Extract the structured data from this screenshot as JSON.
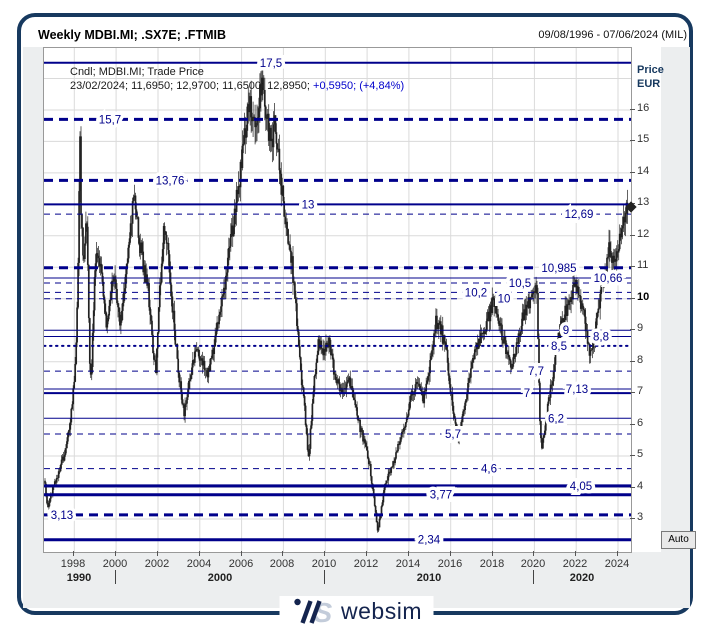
{
  "window": {
    "title": "Weekly MDBI.MI; .SX7E; .FTMIB",
    "date_range": "09/08/1996 - 07/06/2024 (MIL)"
  },
  "legend": {
    "line1": "Cndl; MDBI.MI; Trade Price",
    "line2_black": "23/02/2024; 11,6950; 12,9700; 11,6500; 12,8950; ",
    "line2_blue": "+0,5950; (+4,84%)"
  },
  "axis": {
    "price_title_1": "Price",
    "price_title_2": "EUR",
    "auto_label": "Auto",
    "y_ticks": [
      16,
      15,
      14,
      13,
      12,
      11,
      10,
      9,
      8,
      7,
      6,
      5,
      4,
      3
    ],
    "y_tick_bold": 10,
    "x_ticks": [
      1998,
      2000,
      2002,
      2004,
      2006,
      2008,
      2010,
      2012,
      2014,
      2016,
      2018,
      2020,
      2022,
      2024
    ],
    "decades": [
      {
        "label": "1990",
        "span": [
          1996.55,
          2000
        ]
      },
      {
        "label": "2000",
        "span": [
          2000,
          2010
        ]
      },
      {
        "label": "2010",
        "span": [
          2010,
          2020
        ]
      },
      {
        "label": "2020",
        "span": [
          2020,
          2024.62
        ]
      }
    ],
    "decade_separators": [
      2000,
      2010,
      2020
    ]
  },
  "logo": {
    "text": "websim"
  },
  "colors": {
    "navy_line": "#00008b",
    "frame": "#17395f",
    "grid": "#dadada",
    "candle_body": "#222222",
    "candle_wick": "#3c3c3c",
    "change_text": "#0000cc"
  },
  "chart_data": {
    "type": "candlestick",
    "interval": "weekly",
    "title": "Weekly MDBI.MI; .SX7E; .FTMIB",
    "xlim": [
      1996.55,
      2024.62
    ],
    "ylim": [
      1.95,
      17.97
    ],
    "grid": {
      "y_step": 1,
      "y_range": [
        3,
        17
      ],
      "x_step_years": 2
    },
    "last_quote": {
      "date": "23/02/2024",
      "open": 11.695,
      "high": 12.97,
      "low": 11.65,
      "close": 12.895,
      "change": 0.595,
      "change_pct": 4.84
    },
    "last_price_marker": {
      "shape": "diamond",
      "price": 12.895
    },
    "levels": [
      {
        "value": 17.5,
        "label": "17,5",
        "style": "solid",
        "weight": 2,
        "label_pos": 0.387
      },
      {
        "value": 15.7,
        "label": "15,7",
        "style": "dashed",
        "weight": 3,
        "label_pos": 0.112
      },
      {
        "value": 13.76,
        "label": "13,76",
        "style": "dashed",
        "weight": 3,
        "label_pos": 0.215
      },
      {
        "value": 13.0,
        "label": "13",
        "style": "solid",
        "weight": 2,
        "label_pos": 0.45
      },
      {
        "value": 12.69,
        "label": "12,69",
        "style": "dashed",
        "weight": 1,
        "label_pos": 0.911
      },
      {
        "value": 10.985,
        "label": "10,985",
        "style": "dashed",
        "weight": 3,
        "label_pos": 0.877
      },
      {
        "value": 10.66,
        "label": "10,66",
        "style": "solid",
        "weight": 1,
        "label_pos": 0.96
      },
      {
        "value": 10.5,
        "label": "10,5",
        "style": "dashed",
        "weight": 1,
        "label_pos": 0.811
      },
      {
        "value": 10.2,
        "label": "10,2",
        "style": "dashed",
        "weight": 1,
        "label_pos": 0.736
      },
      {
        "value": 10.0,
        "label": "10",
        "style": "dashed",
        "weight": 1,
        "label_pos": 0.784
      },
      {
        "value": 9.0,
        "label": "9",
        "style": "solid",
        "weight": 1,
        "label_pos": 0.89
      },
      {
        "value": 8.8,
        "label": "8,8",
        "style": "solid",
        "weight": 1,
        "label_pos": 0.949
      },
      {
        "value": 8.5,
        "label": "8,5",
        "style": "dotted",
        "weight": 2,
        "label_pos": 0.877
      },
      {
        "value": 7.7,
        "label": "7,7",
        "style": "dashed",
        "weight": 1,
        "label_pos": 0.838
      },
      {
        "value": 7.13,
        "label": "7,13",
        "style": "solid",
        "weight": 1,
        "label_pos": 0.908
      },
      {
        "value": 7.0,
        "label": "7",
        "style": "solid",
        "weight": 2,
        "label_pos": 0.823
      },
      {
        "value": 6.2,
        "label": "6,2",
        "style": "solid",
        "weight": 1,
        "label_pos": 0.872
      },
      {
        "value": 5.7,
        "label": "5,7",
        "style": "dashed",
        "weight": 1,
        "label_pos": 0.697
      },
      {
        "value": 4.6,
        "label": "4,6",
        "style": "dashed",
        "weight": 1,
        "label_pos": 0.758
      },
      {
        "value": 4.05,
        "label": "4,05",
        "style": "solid",
        "weight": 3,
        "label_pos": 0.915
      },
      {
        "value": 3.77,
        "label": "3,77",
        "style": "solid",
        "weight": 3,
        "label_pos": 0.676
      },
      {
        "value": 3.13,
        "label": "3,13",
        "style": "dashed",
        "weight": 3,
        "label_pos": 0.03
      },
      {
        "value": 2.34,
        "label": "2,34",
        "style": "solid",
        "weight": 3,
        "label_pos": 0.656
      }
    ],
    "price_path_anchors": [
      [
        1996.6,
        4.2
      ],
      [
        1996.72,
        3.35
      ],
      [
        1996.9,
        3.8
      ],
      [
        1997.2,
        4.4
      ],
      [
        1997.5,
        5.0
      ],
      [
        1997.8,
        6.1
      ],
      [
        1998.0,
        7.3
      ],
      [
        1998.12,
        9.2
      ],
      [
        1998.22,
        12.8
      ],
      [
        1998.27,
        15.4
      ],
      [
        1998.33,
        12.3
      ],
      [
        1998.45,
        11.3
      ],
      [
        1998.6,
        12.6
      ],
      [
        1998.72,
        8.3
      ],
      [
        1998.8,
        7.4
      ],
      [
        1998.95,
        10.3
      ],
      [
        1999.1,
        11.6
      ],
      [
        1999.3,
        10.8
      ],
      [
        1999.55,
        9.0
      ],
      [
        1999.8,
        10.6
      ],
      [
        2000.0,
        10.3
      ],
      [
        2000.2,
        9.2
      ],
      [
        2000.45,
        10.7
      ],
      [
        2000.7,
        12.2
      ],
      [
        2000.85,
        13.5
      ],
      [
        2001.05,
        12.2
      ],
      [
        2001.3,
        11.1
      ],
      [
        2001.55,
        10.2
      ],
      [
        2001.72,
        8.6
      ],
      [
        2001.9,
        7.8
      ],
      [
        2002.1,
        10.4
      ],
      [
        2002.3,
        12.4
      ],
      [
        2002.5,
        11.3
      ],
      [
        2002.75,
        9.3
      ],
      [
        2003.0,
        7.6
      ],
      [
        2003.25,
        6.3
      ],
      [
        2003.5,
        7.4
      ],
      [
        2003.8,
        8.4
      ],
      [
        2004.1,
        8.0
      ],
      [
        2004.4,
        7.6
      ],
      [
        2004.7,
        8.6
      ],
      [
        2005.0,
        9.6
      ],
      [
        2005.3,
        10.9
      ],
      [
        2005.6,
        12.4
      ],
      [
        2005.9,
        13.8
      ],
      [
        2006.15,
        15.3
      ],
      [
        2006.35,
        16.4
      ],
      [
        2006.55,
        15.4
      ],
      [
        2006.8,
        16.2
      ],
      [
        2007.0,
        16.9
      ],
      [
        2007.15,
        16.0
      ],
      [
        2007.4,
        14.8
      ],
      [
        2007.6,
        15.6
      ],
      [
        2007.85,
        13.8
      ],
      [
        2008.1,
        12.4
      ],
      [
        2008.4,
        11.2
      ],
      [
        2008.6,
        9.6
      ],
      [
        2008.85,
        7.6
      ],
      [
        2009.05,
        6.2
      ],
      [
        2009.2,
        4.9
      ],
      [
        2009.45,
        7.2
      ],
      [
        2009.65,
        8.6
      ],
      [
        2009.9,
        8.3
      ],
      [
        2010.2,
        8.6
      ],
      [
        2010.5,
        7.4
      ],
      [
        2010.8,
        7.0
      ],
      [
        2011.1,
        7.5
      ],
      [
        2011.4,
        6.9
      ],
      [
        2011.65,
        5.9
      ],
      [
        2011.9,
        5.4
      ],
      [
        2012.15,
        4.6
      ],
      [
        2012.4,
        3.2
      ],
      [
        2012.52,
        2.55
      ],
      [
        2012.7,
        3.5
      ],
      [
        2012.95,
        4.3
      ],
      [
        2013.2,
        4.7
      ],
      [
        2013.5,
        5.3
      ],
      [
        2013.8,
        6.0
      ],
      [
        2014.1,
        6.9
      ],
      [
        2014.4,
        7.3
      ],
      [
        2014.7,
        6.8
      ],
      [
        2015.0,
        7.9
      ],
      [
        2015.3,
        9.3
      ],
      [
        2015.55,
        9.0
      ],
      [
        2015.8,
        8.2
      ],
      [
        2016.1,
        6.6
      ],
      [
        2016.35,
        5.6
      ],
      [
        2016.6,
        6.3
      ],
      [
        2016.9,
        7.6
      ],
      [
        2017.2,
        8.5
      ],
      [
        2017.5,
        8.9
      ],
      [
        2017.8,
        9.4
      ],
      [
        2018.05,
        10.0
      ],
      [
        2018.3,
        9.3
      ],
      [
        2018.6,
        8.5
      ],
      [
        2018.9,
        7.7
      ],
      [
        2019.15,
        8.6
      ],
      [
        2019.4,
        9.3
      ],
      [
        2019.7,
        9.8
      ],
      [
        2019.95,
        10.2
      ],
      [
        2020.12,
        10.3
      ],
      [
        2020.25,
        6.2
      ],
      [
        2020.35,
        5.2
      ],
      [
        2020.6,
        6.4
      ],
      [
        2020.85,
        7.4
      ],
      [
        2021.1,
        8.6
      ],
      [
        2021.4,
        9.4
      ],
      [
        2021.7,
        10.0
      ],
      [
        2021.95,
        10.4
      ],
      [
        2022.15,
        10.1
      ],
      [
        2022.45,
        9.1
      ],
      [
        2022.65,
        8.2
      ],
      [
        2022.9,
        8.9
      ],
      [
        2023.1,
        9.9
      ],
      [
        2023.35,
        10.9
      ],
      [
        2023.6,
        11.6
      ],
      [
        2023.8,
        11.2
      ],
      [
        2024.0,
        11.5
      ],
      [
        2024.15,
        12.2
      ],
      [
        2024.3,
        12.6
      ],
      [
        2024.43,
        12.9
      ]
    ]
  }
}
